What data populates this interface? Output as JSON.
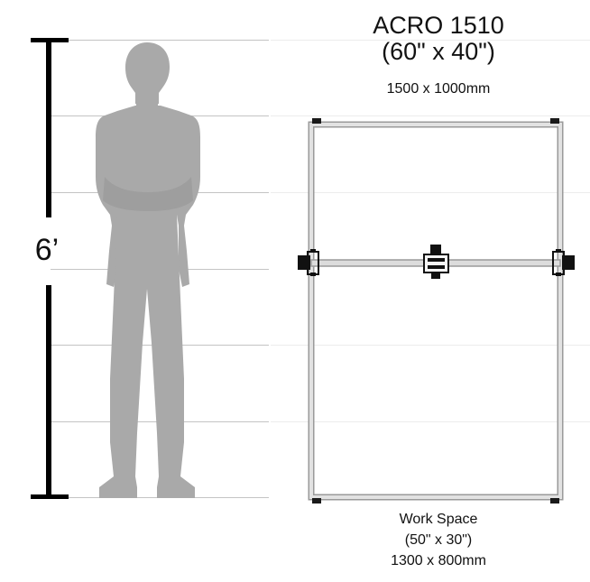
{
  "machine": {
    "title": "ACRO 1510",
    "size_inches": "(60\" x 40\")",
    "size_mm": "1500 x 1000mm"
  },
  "work_space": {
    "label": "Work Space",
    "size_inches": "(50\" x 30\")",
    "size_mm": "1300 x 800mm"
  },
  "scale": {
    "height_label": "6’"
  },
  "colors": {
    "silhouette": "#a9a9a9",
    "frame": "#d9d9d9",
    "frame_outline": "#999999",
    "grid_line": "#bfbfbf",
    "scale_bar": "#000000"
  },
  "icons": {
    "person": "person-silhouette-icon",
    "carriage": "carriage-head-icon"
  }
}
